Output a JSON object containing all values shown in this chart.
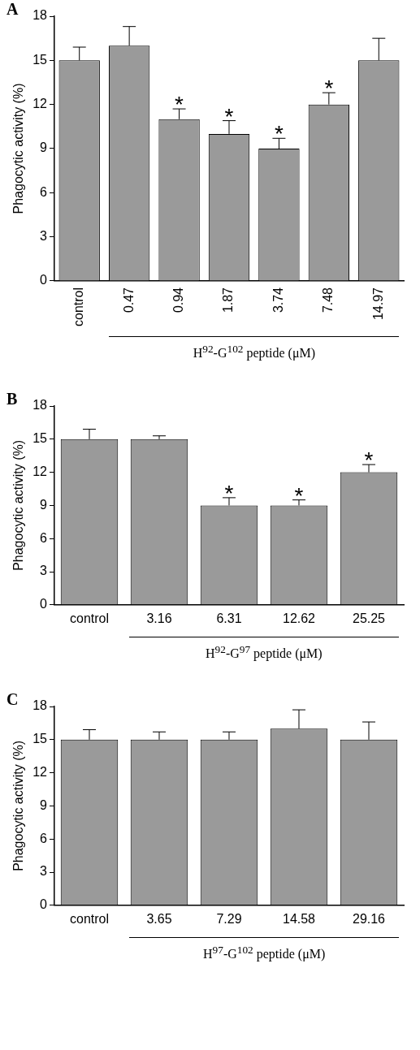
{
  "chart_data": [
    {
      "type": "bar",
      "title": "A",
      "ylabel": "Phagocytic activity (%)",
      "xlabel": "H$^{92}$-G$^{102}$ peptide (μM)",
      "categories": [
        "control",
        "0.47",
        "0.94",
        "1.87",
        "3.74",
        "7.48",
        "14.97"
      ],
      "values": [
        15,
        16,
        11,
        10,
        9,
        12,
        15
      ],
      "errors": [
        0.9,
        1.3,
        0.7,
        0.9,
        0.7,
        0.8,
        1.5
      ],
      "color": "#9a9a9a",
      "ylim": [
        0,
        18
      ],
      "yticks": [
        0,
        3,
        6,
        9,
        12,
        15,
        18
      ],
      "grid": false,
      "legend": false,
      "annotations": [
        {
          "text": "*",
          "x": "0.94",
          "y": 11.7
        },
        {
          "text": "*",
          "x": "1.87",
          "y": 10.9
        },
        {
          "text": "*",
          "x": "3.74",
          "y": 9.7
        },
        {
          "text": "*",
          "x": "7.48",
          "y": 12.8
        }
      ]
    },
    {
      "type": "bar",
      "title": "B",
      "ylabel": "Phagocytic activity (%)",
      "xlabel": "H$^{92}$-G$^{97}$ peptide (μM)",
      "categories": [
        "control",
        "3.16",
        "6.31",
        "12.62",
        "25.25"
      ],
      "values": [
        15,
        15,
        9,
        9,
        12
      ],
      "errors": [
        0.9,
        0.3,
        0.7,
        0.5,
        0.7
      ],
      "color": "#9a9a9a",
      "ylim": [
        0,
        18
      ],
      "yticks": [
        0,
        3,
        6,
        9,
        12,
        15,
        18
      ],
      "grid": false,
      "legend": false,
      "annotations": [
        {
          "text": "*",
          "x": "6.31",
          "y": 9.7
        },
        {
          "text": "*",
          "x": "12.62",
          "y": 9.5
        },
        {
          "text": "*",
          "x": "25.25",
          "y": 12.7
        }
      ]
    },
    {
      "type": "bar",
      "title": "C",
      "ylabel": "Phagocytic activity (%)",
      "xlabel": "H$^{97}$-G$^{102}$ peptide (μM)",
      "categories": [
        "control",
        "3.65",
        "7.29",
        "14.58",
        "29.16"
      ],
      "values": [
        15,
        15,
        15,
        16,
        15
      ],
      "errors": [
        0.9,
        0.7,
        0.7,
        1.7,
        1.6
      ],
      "color": "#9a9a9a",
      "ylim": [
        0,
        18
      ],
      "yticks": [
        0,
        3,
        6,
        9,
        12,
        15,
        18
      ],
      "grid": false,
      "legend": false
    }
  ]
}
